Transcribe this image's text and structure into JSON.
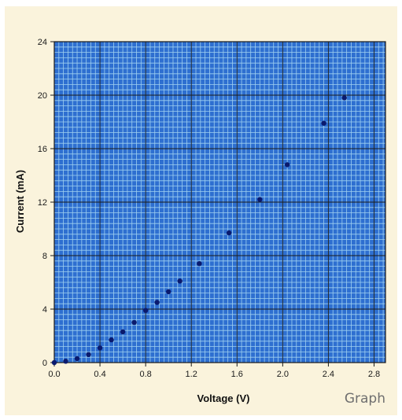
{
  "chart_data": {
    "type": "scatter",
    "title": "",
    "xlabel": "Voltage (V)",
    "ylabel": "Current (mA)",
    "xlim": [
      0,
      2.9
    ],
    "ylim": [
      0,
      24
    ],
    "xticks": [
      "0.0",
      "0.4",
      "0.8",
      "1.2",
      "1.6",
      "2.0",
      "2.4",
      "2.8"
    ],
    "yticks": [
      "0",
      "4",
      "8",
      "12",
      "16",
      "20",
      "24"
    ],
    "grid": true,
    "legend": "none",
    "corner_label": "Graph",
    "series": [
      {
        "color": "#0a1a6e",
        "x": [
          0.0,
          0.1,
          0.2,
          0.3,
          0.4,
          0.5,
          0.6,
          0.7,
          0.8,
          0.9,
          1.0,
          1.1,
          1.27,
          1.53,
          1.8,
          2.04,
          2.36,
          2.54
        ],
        "y": [
          0.0,
          0.1,
          0.3,
          0.6,
          1.1,
          1.7,
          2.3,
          3.0,
          3.9,
          4.5,
          5.3,
          6.1,
          7.4,
          9.7,
          12.2,
          14.8,
          17.9,
          19.8
        ]
      }
    ]
  },
  "colors": {
    "panel": "#faf3dc",
    "plot_bg": "#2e6fd0",
    "minor_grid": "#9fd0f0",
    "major_grid": "#1a1a1a",
    "marker": "#0a1a6e"
  }
}
